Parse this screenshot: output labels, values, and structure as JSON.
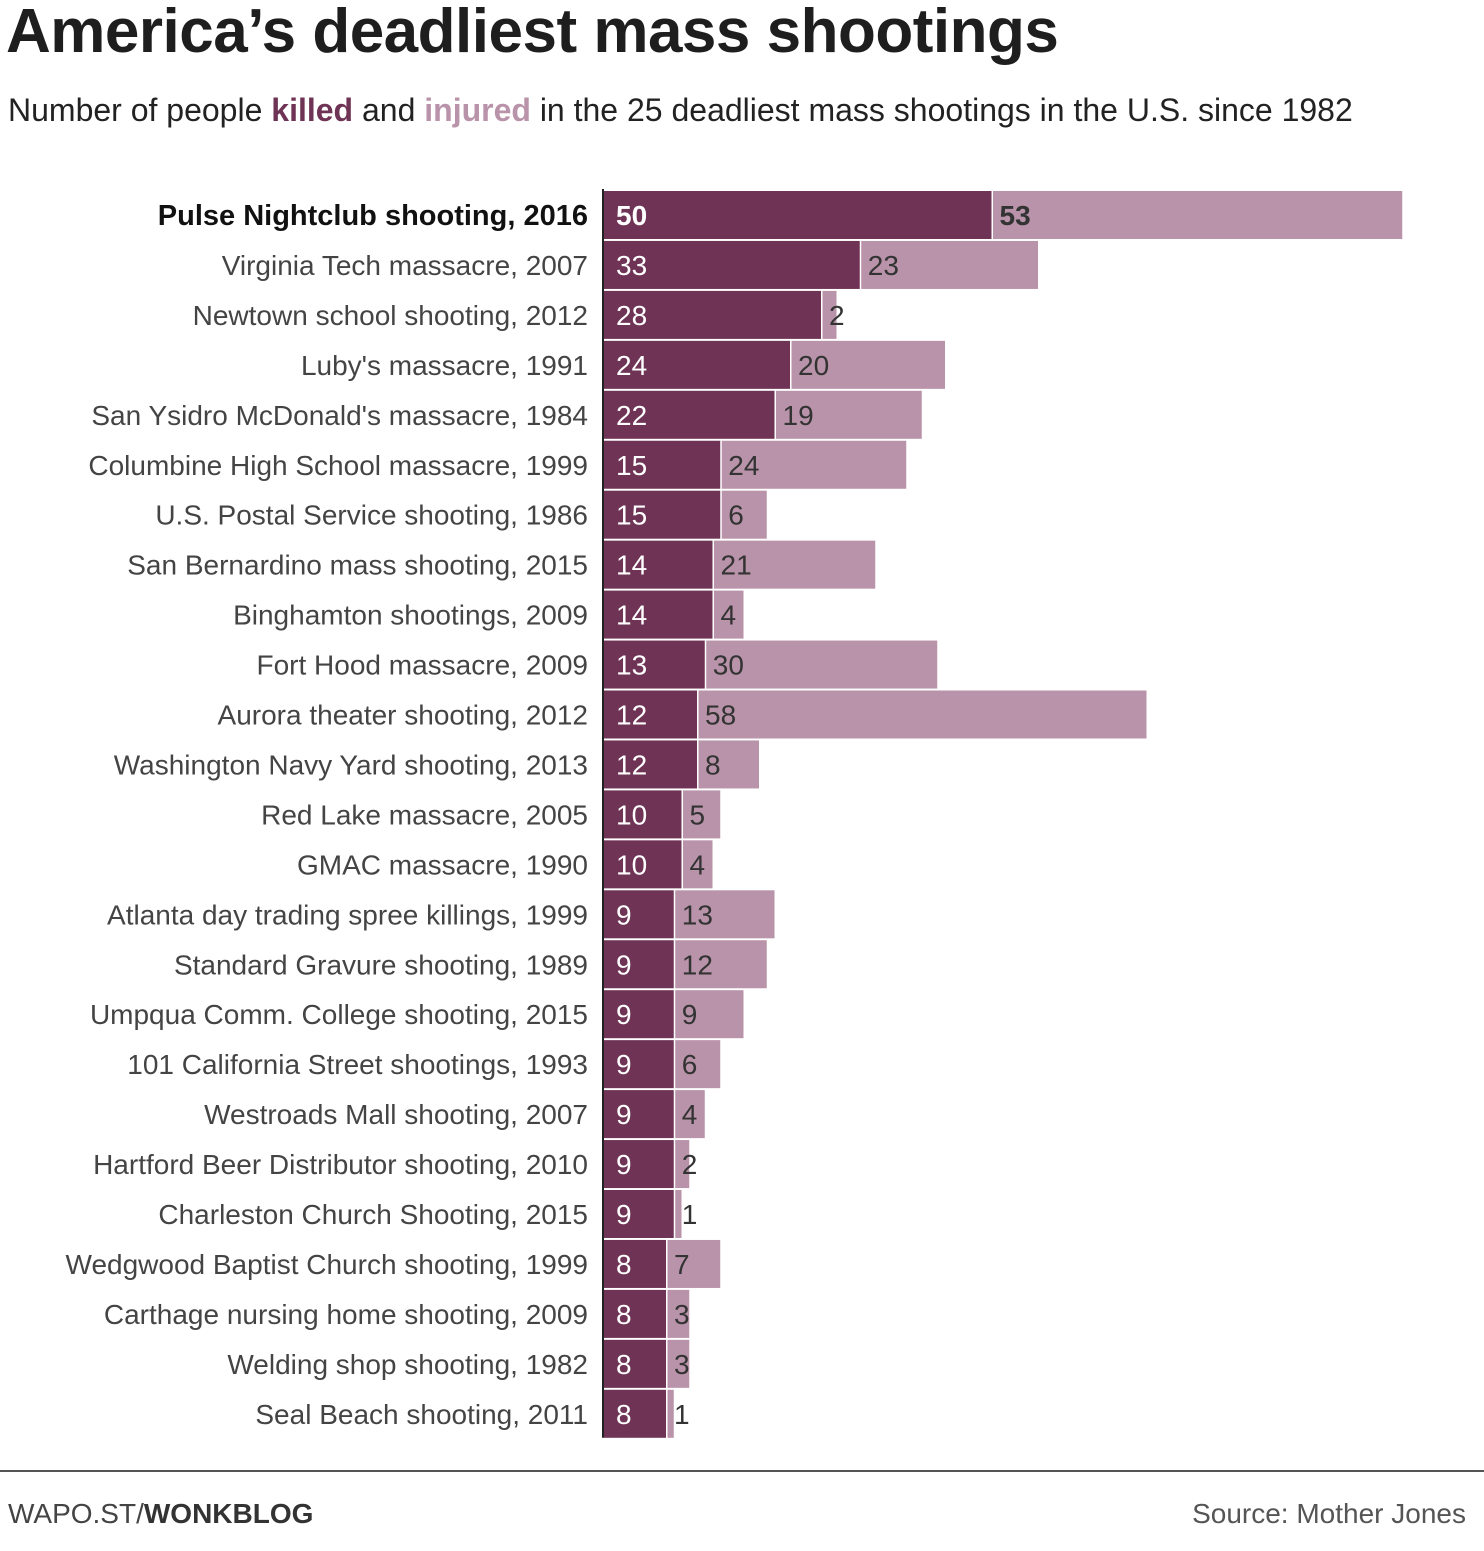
{
  "header": {
    "title": "America’s deadliest mass shootings",
    "subtitle_pre": "Number of people ",
    "subtitle_killed": "killed",
    "subtitle_mid": " and ",
    "subtitle_injured": "injured",
    "subtitle_post": " in the 25 deadliest mass shootings in the U.S. since 1982"
  },
  "colors": {
    "killed": "#6f3455",
    "injured": "#b993a9",
    "axis": "#222222"
  },
  "chart_data": {
    "type": "bar",
    "orientation": "horizontal",
    "stacked": true,
    "title": "America’s deadliest mass shootings",
    "categories": [
      "Pulse Nightclub shooting, 2016",
      "Virginia Tech massacre, 2007",
      "Newtown school shooting, 2012",
      "Luby's massacre, 1991",
      "San Ysidro McDonald's massacre, 1984",
      "Columbine High School massacre, 1999",
      "U.S. Postal Service shooting, 1986",
      "San Bernardino mass shooting, 2015",
      "Binghamton shootings, 2009",
      "Fort Hood massacre, 2009",
      "Aurora theater shooting, 2012",
      "Washington Navy Yard shooting, 2013",
      "Red Lake massacre, 2005",
      "GMAC massacre, 1990",
      "Atlanta day trading spree killings, 1999",
      "Standard Gravure shooting, 1989",
      "Umpqua Comm. College shooting, 2015",
      "101 California Street shootings, 1993",
      "Westroads Mall shooting, 2007",
      "Hartford Beer Distributor shooting, 2010",
      "Charleston Church Shooting, 2015",
      "Wedgwood Baptist Church shooting, 1999",
      "Carthage nursing home shooting, 2009",
      "Welding shop shooting, 1982",
      "Seal Beach shooting, 2011"
    ],
    "series": [
      {
        "name": "killed",
        "values": [
          50,
          33,
          28,
          24,
          22,
          15,
          15,
          14,
          14,
          13,
          12,
          12,
          10,
          10,
          9,
          9,
          9,
          9,
          9,
          9,
          9,
          8,
          8,
          8,
          8
        ]
      },
      {
        "name": "injured",
        "values": [
          53,
          23,
          2,
          20,
          19,
          24,
          6,
          21,
          4,
          30,
          58,
          8,
          5,
          4,
          13,
          12,
          9,
          6,
          4,
          2,
          1,
          7,
          3,
          3,
          1
        ]
      }
    ],
    "highlight_index": 0,
    "xlim": [
      0,
      112
    ]
  },
  "footer": {
    "site": "WAPO.ST/",
    "section": "WONKBLOG",
    "source": "Source: Mother Jones"
  }
}
